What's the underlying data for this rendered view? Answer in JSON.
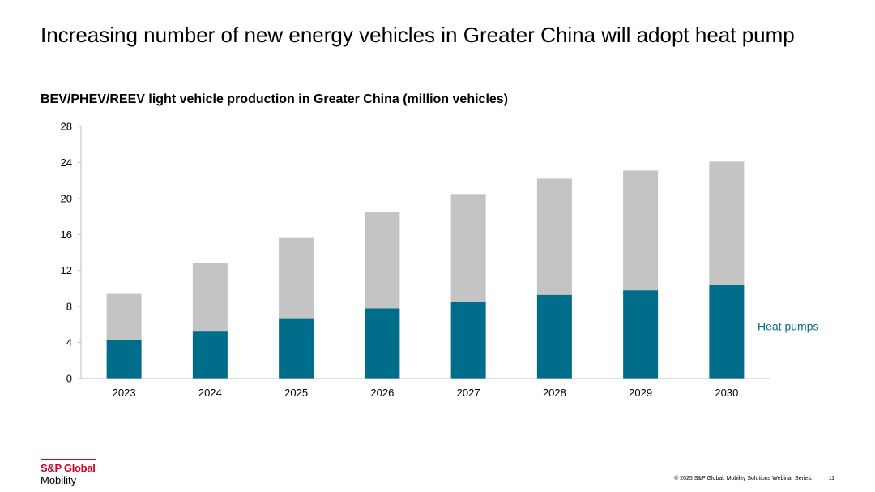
{
  "slide": {
    "title": "Increasing number of new energy vehicles in Greater China will adopt heat pump",
    "copyright": "© 2025 S&P Global. Mobility Solutions Webinar Series.",
    "page_number": "11"
  },
  "logo": {
    "line1": "S&P Global",
    "line2": "Mobility",
    "brand_color": "#d6002a"
  },
  "chart_data": {
    "type": "bar",
    "stacked": true,
    "title": "BEV/PHEV/REEV light vehicle production in Greater China (million vehicles)",
    "categories": [
      "2023",
      "2024",
      "2025",
      "2026",
      "2027",
      "2028",
      "2029",
      "2030"
    ],
    "series": [
      {
        "name": "Heat pumps",
        "color": "#006d8a",
        "values": [
          4.3,
          5.3,
          6.7,
          7.8,
          8.5,
          9.3,
          9.8,
          10.4
        ]
      },
      {
        "name": "",
        "color": "#c4c4c4",
        "values": [
          5.1,
          7.5,
          8.9,
          10.7,
          12.0,
          12.9,
          13.3,
          13.7
        ]
      }
    ],
    "totals": [
      9.4,
      12.8,
      15.6,
      18.5,
      20.5,
      22.2,
      23.1,
      24.1
    ],
    "ylim": [
      0,
      28
    ],
    "yticks": [
      0,
      4,
      8,
      12,
      16,
      20,
      24,
      28
    ],
    "grid": false,
    "legend": "right, inline label beside last bar"
  }
}
